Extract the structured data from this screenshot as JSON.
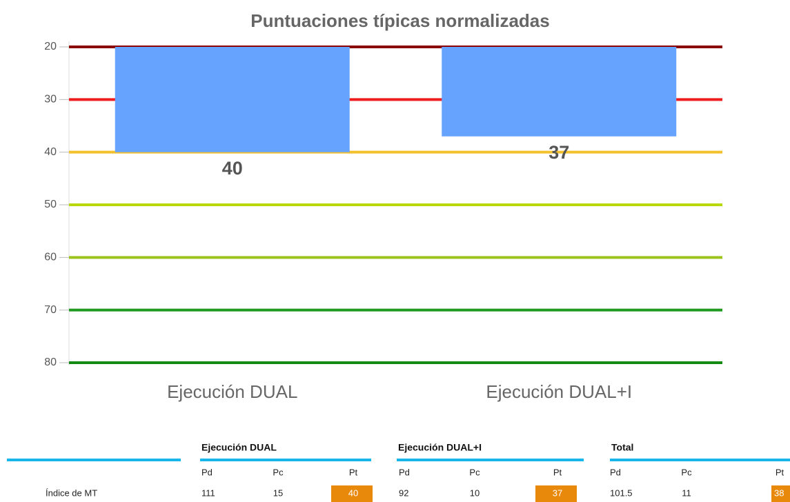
{
  "chart_data": {
    "type": "bar",
    "title": "Puntuaciones típicas normalizadas",
    "categories": [
      "Ejecución DUAL",
      "Ejecución DUAL+I"
    ],
    "values": [
      40,
      37
    ],
    "color": "#66a3ff",
    "ylim": [
      20,
      80
    ],
    "yticks": [
      20,
      30,
      40,
      50,
      60,
      70,
      80
    ],
    "y_inverted": true,
    "grid": true,
    "grid_colors": [
      "#8b0000",
      "#ee1c1c",
      "#f3c12e",
      "#b8d80a",
      "#9cc41c",
      "#1f9a1f",
      "#148a14"
    ]
  },
  "table": {
    "groups": [
      {
        "name": "Ejecución DUAL",
        "columns": [
          "Pd",
          "Pc",
          "Pt"
        ]
      },
      {
        "name": "Ejecución DUAL+I",
        "columns": [
          "Pd",
          "Pc",
          "Pt"
        ]
      },
      {
        "name": "Total",
        "columns": [
          "Pd",
          "Pc",
          "Pt"
        ]
      }
    ],
    "rows": [
      {
        "label": "Índice de MT",
        "values": [
          [
            "111",
            "15",
            "40"
          ],
          [
            "92",
            "10",
            "37"
          ],
          [
            "101.5",
            "11",
            "38"
          ]
        ]
      }
    ],
    "highlight_color": "#e8890c",
    "rule_color": "#19b6ec"
  }
}
